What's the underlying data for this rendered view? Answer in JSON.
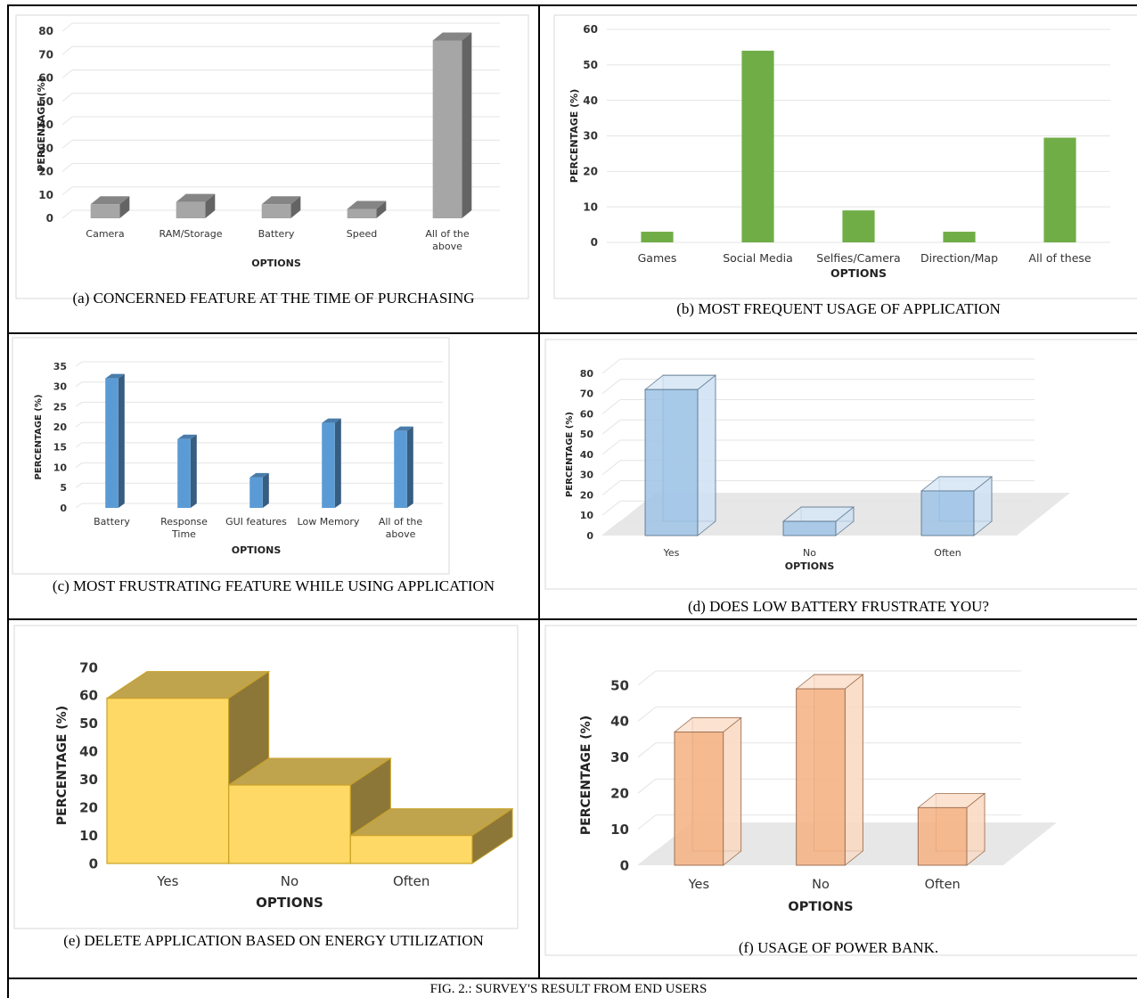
{
  "figure_caption": "FIG. 2.: SURVEY'S RESULT FROM END USERS",
  "colors": {
    "gray": "#a6a6a6",
    "green": "#70ad47",
    "blue": "#5b9bd5",
    "lightblue": "#9dc3e6",
    "yellow": "#ffd966",
    "orange": "#f4b183"
  },
  "chart_data": [
    {
      "id": "a",
      "type": "bar",
      "style": "3d-column",
      "caption": "(a)    CONCERNED FEATURE AT THE TIME OF PURCHASING",
      "categories": [
        "Camera",
        "RAM/Storage",
        "Battery",
        "Speed",
        "All of the above"
      ],
      "values": [
        6,
        7,
        6,
        4,
        76
      ],
      "xlabel": "OPTIONS",
      "ylabel": "PERCENTAGE (%)",
      "ylim": [
        0,
        80
      ],
      "ticks": [
        0,
        10,
        20,
        30,
        40,
        50,
        60,
        70,
        80
      ],
      "grid": true,
      "color": "#a6a6a6"
    },
    {
      "id": "b",
      "type": "bar",
      "caption": "(b)    MOST FREQUENT USAGE OF APPLICATION",
      "categories": [
        "Games",
        "Social Media",
        "Selfies/Camera",
        "Direction/Map",
        "All of these"
      ],
      "values": [
        3,
        54,
        9,
        3,
        29.5
      ],
      "xlabel": "OPTIONS",
      "ylabel": "PERCENTAGE (%)",
      "ylim": [
        0,
        60
      ],
      "ticks": [
        0,
        10,
        20,
        30,
        40,
        50,
        60
      ],
      "grid": true,
      "color": "#70ad47"
    },
    {
      "id": "c",
      "type": "bar",
      "style": "3d-column",
      "caption": "(c) MOST FRUSTRATING FEATURE WHILE USING APPLICATION",
      "categories": [
        "Battery",
        "Response Time",
        "GUI features",
        "Low Memory",
        "All of the above"
      ],
      "values": [
        32,
        17,
        7.5,
        21,
        19
      ],
      "xlabel": "OPTIONS",
      "ylabel": "PERCENTAGE (%)",
      "ylim": [
        0,
        35
      ],
      "ticks": [
        0,
        5,
        10,
        15,
        20,
        25,
        30,
        35
      ],
      "grid": true,
      "color": "#5b9bd5"
    },
    {
      "id": "d",
      "type": "bar",
      "style": "3d-glass",
      "caption": "(d) DOES LOW BATTERY FRUSTRATE YOU?",
      "categories": [
        "Yes",
        "No",
        "Often"
      ],
      "values": [
        72,
        7,
        22
      ],
      "xlabel": "OPTIONS",
      "ylabel": "PERCENTAGE (%)",
      "ylim": [
        0,
        80
      ],
      "ticks": [
        0,
        10,
        20,
        30,
        40,
        50,
        60,
        70,
        80
      ],
      "grid": true,
      "color": "#9dc3e6"
    },
    {
      "id": "e",
      "type": "area",
      "style": "3d-step",
      "caption": "(e) DELETE APPLICATION BASED ON ENERGY UTILIZATION",
      "categories": [
        "Yes",
        "No",
        "Often"
      ],
      "values": [
        59,
        28,
        10
      ],
      "xlabel": "OPTIONS",
      "ylabel": "PERCENTAGE (%)",
      "ylim": [
        0,
        70
      ],
      "ticks": [
        0,
        10,
        20,
        30,
        40,
        50,
        60,
        70
      ],
      "grid": false,
      "color": "#ffd966"
    },
    {
      "id": "f",
      "type": "bar",
      "style": "3d-glass",
      "caption": "(f) USAGE OF POWER BANK.",
      "categories": [
        "Yes",
        "No",
        "Often"
      ],
      "values": [
        37,
        49,
        16
      ],
      "xlabel": "OPTIONS",
      "ylabel": "PERCENTAGE (%)",
      "ylim": [
        0,
        50
      ],
      "ticks": [
        0,
        10,
        20,
        30,
        40,
        50
      ],
      "grid": true,
      "color": "#f4b183"
    }
  ]
}
